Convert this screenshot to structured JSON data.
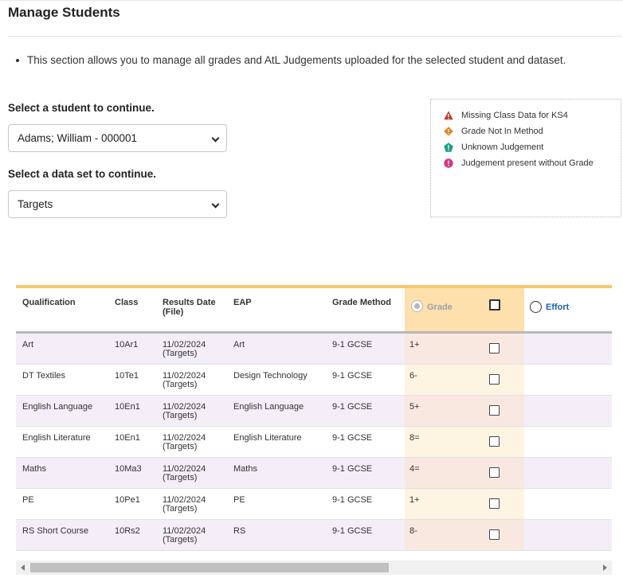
{
  "page": {
    "title": "Manage Students",
    "info_text": "This section allows you to manage all grades and AtL Judgements uploaded for the selected student and dataset."
  },
  "student_select": {
    "label": "Select a student to continue.",
    "value": "Adams; William - 000001"
  },
  "dataset_select": {
    "label": "Select a data set to continue.",
    "value": "Targets"
  },
  "legend": {
    "items": [
      {
        "icon": "warning-triangle-icon",
        "color": "#c0392b",
        "label": "Missing Class Data for KS4"
      },
      {
        "icon": "warning-diamond-icon",
        "color": "#e67e22",
        "label": "Grade Not In Method"
      },
      {
        "icon": "warning-pentagon-icon",
        "color": "#16a085",
        "label": "Unknown Judgement"
      },
      {
        "icon": "warning-circle-icon",
        "color": "#d63384",
        "label": "Judgement present without Grade"
      }
    ]
  },
  "table": {
    "headers": {
      "qualification": "Qualification",
      "class": "Class",
      "results_date_1": "Results Date",
      "results_date_2": "(File)",
      "eap": "EAP",
      "grade_method": "Grade Method",
      "grade": "Grade",
      "effort": "Effort"
    },
    "rows": [
      {
        "qualification": "Art",
        "class": "10Ar1",
        "date": "11/02/2024",
        "file": "(Targets)",
        "eap": "Art",
        "method": "9-1 GCSE",
        "grade": "1+"
      },
      {
        "qualification": "DT Textiles",
        "class": "10Te1",
        "date": "11/02/2024",
        "file": "(Targets)",
        "eap": "Design Technology",
        "method": "9-1 GCSE",
        "grade": "6-"
      },
      {
        "qualification": "English Language",
        "class": "10En1",
        "date": "11/02/2024",
        "file": "(Targets)",
        "eap": "English Language",
        "method": "9-1 GCSE",
        "grade": "5+"
      },
      {
        "qualification": "English Literature",
        "class": "10En1",
        "date": "11/02/2024",
        "file": "(Targets)",
        "eap": "English Literature",
        "method": "9-1 GCSE",
        "grade": "8="
      },
      {
        "qualification": "Maths",
        "class": "10Ma3",
        "date": "11/02/2024",
        "file": "(Targets)",
        "eap": "Maths",
        "method": "9-1 GCSE",
        "grade": "4="
      },
      {
        "qualification": "PE",
        "class": "10Pe1",
        "date": "11/02/2024",
        "file": "(Targets)",
        "eap": "PE",
        "method": "9-1 GCSE",
        "grade": "1+"
      },
      {
        "qualification": "RS Short Course",
        "class": "10Rs2",
        "date": "11/02/2024",
        "file": "(Targets)",
        "eap": "RS",
        "method": "9-1 GCSE",
        "grade": "8-"
      }
    ]
  },
  "colors": {
    "accent_bar": "#f7c96c",
    "grade_header": "#fde0ab",
    "effort_link": "#1a5fb4",
    "row_stripe": "#f4eef8"
  }
}
